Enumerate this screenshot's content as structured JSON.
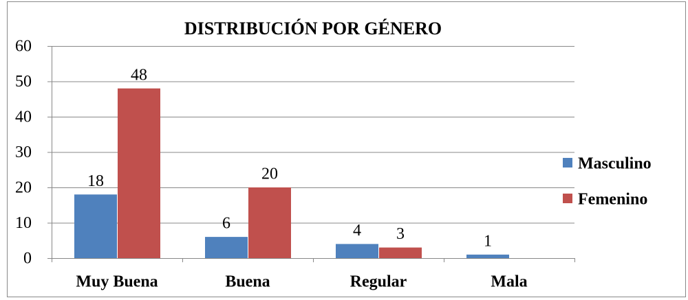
{
  "chart_data": {
    "type": "bar",
    "title": "DISTRIBUCIÓN POR GÉNERO",
    "categories": [
      "Muy Buena",
      "Buena",
      "Regular",
      "Mala"
    ],
    "series": [
      {
        "name": "Masculino",
        "color": "#4f81bd",
        "values": [
          18,
          6,
          4,
          1
        ]
      },
      {
        "name": "Femenino",
        "color": "#c0504d",
        "values": [
          48,
          20,
          3,
          null
        ]
      }
    ],
    "ylim": [
      0,
      60
    ],
    "yticks": [
      0,
      10,
      20,
      30,
      40,
      50,
      60
    ],
    "grid": true,
    "legend": "right"
  }
}
